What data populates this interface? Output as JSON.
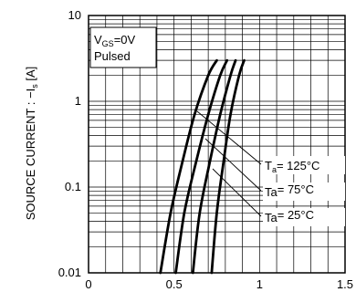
{
  "chart_data": {
    "type": "line",
    "scale": "log-y",
    "ylabel": "SOURCE CURRENT : −I",
    "ylabel_subscript": "s",
    "ylabel_unit": " [A]",
    "xlim": [
      0,
      1.5
    ],
    "ylim": [
      0.01,
      10
    ],
    "x_ticks": [
      {
        "value": 0,
        "label": "0"
      },
      {
        "value": 0.5,
        "label": "0.5"
      },
      {
        "value": 1,
        "label": "1"
      },
      {
        "value": 1.5,
        "label": "1.5"
      }
    ],
    "y_ticks": [
      {
        "value": 10,
        "label": "10"
      },
      {
        "value": 1,
        "label": "1"
      },
      {
        "value": 0.1,
        "label": "0.1"
      },
      {
        "value": 0.01,
        "label": "0.01"
      }
    ],
    "grid": true,
    "conditions": {
      "line1_main": "V",
      "line1_sub": "GS",
      "line1_rest": "=0V",
      "line2": "Pulsed"
    },
    "annotations": [
      {
        "main": "T",
        "sub": "a",
        "rest": "= 125°C",
        "series_index": 0
      },
      {
        "main": "Ta",
        "sub": "",
        "rest": "= 75°C",
        "series_index": 1
      },
      {
        "main": "Ta",
        "sub": "",
        "rest": "= 25°C",
        "series_index": 2
      }
    ],
    "series": [
      {
        "values": [
          [
            0.42,
            0.01
          ],
          [
            0.48,
            0.05
          ],
          [
            0.55,
            0.2
          ],
          [
            0.62,
            0.7
          ],
          [
            0.7,
            2.0
          ],
          [
            0.75,
            3.0
          ]
        ]
      },
      {
        "values": [
          [
            0.51,
            0.01
          ],
          [
            0.56,
            0.05
          ],
          [
            0.63,
            0.2
          ],
          [
            0.7,
            0.7
          ],
          [
            0.77,
            2.0
          ],
          [
            0.81,
            3.0
          ]
        ]
      },
      {
        "values": [
          [
            0.61,
            0.01
          ],
          [
            0.65,
            0.05
          ],
          [
            0.71,
            0.2
          ],
          [
            0.77,
            0.7
          ],
          [
            0.83,
            2.0
          ],
          [
            0.86,
            3.0
          ]
        ]
      },
      {
        "values": [
          [
            0.72,
            0.01
          ],
          [
            0.75,
            0.05
          ],
          [
            0.79,
            0.2
          ],
          [
            0.83,
            0.7
          ],
          [
            0.88,
            2.0
          ],
          [
            0.91,
            3.0
          ]
        ]
      }
    ]
  }
}
